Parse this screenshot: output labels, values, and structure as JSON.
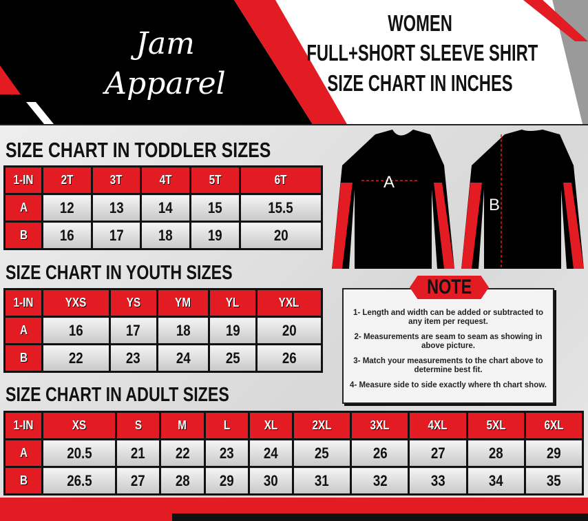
{
  "brand": {
    "logo_text": "Jam Apparel"
  },
  "title": {
    "line1": "WOMEN",
    "line2": "FULL+SHORT SLEEVE SHIRT",
    "line3": "SIZE CHART IN INCHES"
  },
  "colors": {
    "accent": "#e31b23",
    "dark": "#000000",
    "panel": "#e0e0e0"
  },
  "diagram": {
    "front_label": "A",
    "back_label": "B"
  },
  "toddler": {
    "title": "SIZE CHART IN TODDLER  SIZES",
    "header": [
      "1-IN",
      "2T",
      "3T",
      "4T",
      "5T",
      "6T"
    ],
    "rows": [
      [
        "A",
        "12",
        "13",
        "14",
        "15",
        "15.5"
      ],
      [
        "B",
        "16",
        "17",
        "18",
        "19",
        "20"
      ]
    ]
  },
  "youth": {
    "title": "SIZE CHART IN YOUTH  SIZES",
    "header": [
      "1-IN",
      "YXS",
      "YS",
      "YM",
      "YL",
      "YXL"
    ],
    "rows": [
      [
        "A",
        "16",
        "17",
        "18",
        "19",
        "20"
      ],
      [
        "B",
        "22",
        "23",
        "24",
        "25",
        "26"
      ]
    ]
  },
  "adult": {
    "title": "SIZE CHART IN ADULT SIZES",
    "header": [
      "1-IN",
      "XS",
      "S",
      "M",
      "L",
      "XL",
      "2XL",
      "3XL",
      "4XL",
      "5XL",
      "6XL"
    ],
    "rows": [
      [
        "A",
        "20.5",
        "21",
        "22",
        "23",
        "24",
        "25",
        "26",
        "27",
        "28",
        "29"
      ],
      [
        "B",
        "26.5",
        "27",
        "28",
        "29",
        "30",
        "31",
        "32",
        "33",
        "34",
        "35"
      ]
    ]
  },
  "note": {
    "title": "NOTE",
    "items": [
      "1- Length and width can be added or subtracted to any item per request.",
      "2- Measurements are seam to seam  as showing in above picture.",
      "3- Match your measurements to the chart above to determine best fit.",
      "4- Measure side to side exactly where th chart show."
    ]
  }
}
